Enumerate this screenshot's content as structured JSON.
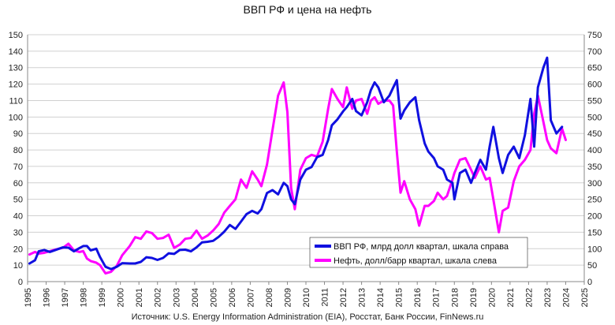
{
  "chart_data": {
    "type": "line",
    "title": "ВВП РФ и цена на нефть",
    "source": "Источник: U.S. Energy Information Administration (EIA), Росстат, Банк России, FinNews.ru",
    "x_ticks": [
      1995,
      1996,
      1997,
      1998,
      1999,
      2000,
      2001,
      2002,
      2003,
      2004,
      2005,
      2006,
      2007,
      2008,
      2009,
      2010,
      2011,
      2012,
      2013,
      2014,
      2015,
      2016,
      2017,
      2018,
      2019,
      2020,
      2021,
      2022,
      2023,
      2024,
      2025
    ],
    "xlim": [
      1995,
      2025
    ],
    "y_left": {
      "min": 0,
      "max": 150,
      "step": 10
    },
    "y_right": {
      "min": 0,
      "max": 750,
      "step": 50
    },
    "grid": true,
    "legend_position": "bottom-right",
    "series": [
      {
        "name": "ВВП РФ, млрд долл квартал, шкала справа",
        "color": "#1010e0",
        "axis": "right",
        "points": [
          [
            1995.1,
            55
          ],
          [
            1995.4,
            65
          ],
          [
            1995.6,
            92
          ],
          [
            1995.9,
            96
          ],
          [
            1996.2,
            90
          ],
          [
            1996.5,
            96
          ],
          [
            1996.9,
            104
          ],
          [
            1997.2,
            103
          ],
          [
            1997.5,
            92
          ],
          [
            1997.8,
            102
          ],
          [
            1998.0,
            108
          ],
          [
            1998.2,
            108
          ],
          [
            1998.4,
            95
          ],
          [
            1998.7,
            100
          ],
          [
            1998.9,
            75
          ],
          [
            1999.2,
            45
          ],
          [
            1999.5,
            38
          ],
          [
            1999.8,
            45
          ],
          [
            2000.1,
            56
          ],
          [
            2000.5,
            55
          ],
          [
            2000.8,
            55
          ],
          [
            2001.1,
            60
          ],
          [
            2001.4,
            74
          ],
          [
            2001.7,
            72
          ],
          [
            2002.0,
            66
          ],
          [
            2002.3,
            72
          ],
          [
            2002.6,
            86
          ],
          [
            2002.9,
            84
          ],
          [
            2003.2,
            96
          ],
          [
            2003.5,
            97
          ],
          [
            2003.8,
            92
          ],
          [
            2004.1,
            104
          ],
          [
            2004.4,
            119
          ],
          [
            2004.7,
            121
          ],
          [
            2005.0,
            124
          ],
          [
            2005.3,
            136
          ],
          [
            2005.6,
            152
          ],
          [
            2005.9,
            172
          ],
          [
            2006.2,
            160
          ],
          [
            2006.5,
            182
          ],
          [
            2006.8,
            205
          ],
          [
            2007.1,
            215
          ],
          [
            2007.4,
            207
          ],
          [
            2007.6,
            220
          ],
          [
            2007.9,
            269
          ],
          [
            2008.2,
            278
          ],
          [
            2008.5,
            265
          ],
          [
            2008.8,
            300
          ],
          [
            2009.0,
            290
          ],
          [
            2009.2,
            250
          ],
          [
            2009.4,
            235
          ],
          [
            2009.7,
            310
          ],
          [
            2010.0,
            340
          ],
          [
            2010.3,
            348
          ],
          [
            2010.6,
            378
          ],
          [
            2010.9,
            385
          ],
          [
            2011.2,
            430
          ],
          [
            2011.4,
            475
          ],
          [
            2011.7,
            493
          ],
          [
            2012.0,
            517
          ],
          [
            2012.2,
            530
          ],
          [
            2012.5,
            555
          ],
          [
            2012.7,
            518
          ],
          [
            2013.0,
            505
          ],
          [
            2013.3,
            545
          ],
          [
            2013.5,
            582
          ],
          [
            2013.7,
            605
          ],
          [
            2013.9,
            590
          ],
          [
            2014.2,
            545
          ],
          [
            2014.5,
            565
          ],
          [
            2014.7,
            589
          ],
          [
            2014.9,
            612
          ],
          [
            2015.1,
            495
          ],
          [
            2015.3,
            520
          ],
          [
            2015.6,
            545
          ],
          [
            2015.9,
            560
          ],
          [
            2016.1,
            490
          ],
          [
            2016.4,
            420
          ],
          [
            2016.6,
            395
          ],
          [
            2016.9,
            375
          ],
          [
            2017.1,
            350
          ],
          [
            2017.4,
            340
          ],
          [
            2017.6,
            310
          ],
          [
            2017.9,
            300
          ],
          [
            2018.0,
            250
          ],
          [
            2018.3,
            330
          ],
          [
            2018.6,
            340
          ],
          [
            2018.9,
            300
          ],
          [
            2019.1,
            330
          ],
          [
            2019.4,
            370
          ],
          [
            2019.7,
            340
          ],
          [
            2019.9,
            410
          ],
          [
            2020.1,
            470
          ],
          [
            2020.4,
            375
          ],
          [
            2020.6,
            330
          ],
          [
            2020.9,
            385
          ],
          [
            2021.2,
            410
          ],
          [
            2021.5,
            375
          ],
          [
            2021.8,
            445
          ],
          [
            2022.1,
            555
          ],
          [
            2022.3,
            410
          ],
          [
            2022.5,
            590
          ],
          [
            2022.8,
            650
          ],
          [
            2023.0,
            680
          ],
          [
            2023.2,
            490
          ],
          [
            2023.5,
            450
          ],
          [
            2023.8,
            470
          ]
        ]
      },
      {
        "name": "Нефть, долл/барр квартал, шкала слева",
        "color": "#ff00ff",
        "axis": "left",
        "points": [
          [
            1995.1,
            16.5
          ],
          [
            1995.4,
            18
          ],
          [
            1995.6,
            17
          ],
          [
            1995.9,
            17.5
          ],
          [
            1996.2,
            18.5
          ],
          [
            1996.5,
            19.5
          ],
          [
            1996.9,
            20.5
          ],
          [
            1997.2,
            23
          ],
          [
            1997.5,
            19
          ],
          [
            1997.8,
            18
          ],
          [
            1998.0,
            18.5
          ],
          [
            1998.2,
            14
          ],
          [
            1998.4,
            12.5
          ],
          [
            1998.7,
            11.5
          ],
          [
            1998.9,
            10
          ],
          [
            1999.2,
            5
          ],
          [
            1999.5,
            6
          ],
          [
            1999.8,
            9.5
          ],
          [
            2000.1,
            16
          ],
          [
            2000.5,
            21.5
          ],
          [
            2000.8,
            27
          ],
          [
            2001.1,
            26
          ],
          [
            2001.4,
            30.5
          ],
          [
            2001.7,
            29.5
          ],
          [
            2002.0,
            26
          ],
          [
            2002.3,
            26.5
          ],
          [
            2002.6,
            28.5
          ],
          [
            2002.9,
            20.5
          ],
          [
            2003.2,
            22.5
          ],
          [
            2003.5,
            26
          ],
          [
            2003.8,
            26.5
          ],
          [
            2004.1,
            31
          ],
          [
            2004.4,
            26
          ],
          [
            2004.7,
            28
          ],
          [
            2005.0,
            31
          ],
          [
            2005.3,
            35
          ],
          [
            2005.6,
            42
          ],
          [
            2005.9,
            46
          ],
          [
            2006.2,
            50
          ],
          [
            2006.5,
            62
          ],
          [
            2006.8,
            57
          ],
          [
            2007.1,
            67
          ],
          [
            2007.4,
            62
          ],
          [
            2007.6,
            58
          ],
          [
            2007.9,
            71
          ],
          [
            2008.2,
            92
          ],
          [
            2008.5,
            113
          ],
          [
            2008.8,
            121
          ],
          [
            2009.0,
            103
          ],
          [
            2009.2,
            57
          ],
          [
            2009.4,
            44
          ],
          [
            2009.7,
            68
          ],
          [
            2010.0,
            75
          ],
          [
            2010.3,
            77
          ],
          [
            2010.6,
            76
          ],
          [
            2010.9,
            85
          ],
          [
            2011.2,
            105
          ],
          [
            2011.4,
            117
          ],
          [
            2011.7,
            111
          ],
          [
            2012.0,
            106
          ],
          [
            2012.2,
            118
          ],
          [
            2012.5,
            105
          ],
          [
            2012.7,
            110
          ],
          [
            2013.0,
            111
          ],
          [
            2013.3,
            102
          ],
          [
            2013.5,
            110
          ],
          [
            2013.7,
            112
          ],
          [
            2013.9,
            108
          ],
          [
            2014.2,
            110
          ],
          [
            2014.5,
            110
          ],
          [
            2014.7,
            107
          ],
          [
            2014.9,
            79
          ],
          [
            2015.1,
            54
          ],
          [
            2015.3,
            61
          ],
          [
            2015.6,
            50
          ],
          [
            2015.9,
            44
          ],
          [
            2016.1,
            34
          ],
          [
            2016.4,
            46
          ],
          [
            2016.6,
            46
          ],
          [
            2016.9,
            49
          ],
          [
            2017.1,
            54
          ],
          [
            2017.4,
            50
          ],
          [
            2017.6,
            52
          ],
          [
            2017.9,
            62
          ],
          [
            2018.0,
            66
          ],
          [
            2018.3,
            74
          ],
          [
            2018.6,
            75
          ],
          [
            2018.9,
            68
          ],
          [
            2019.1,
            63
          ],
          [
            2019.4,
            70
          ],
          [
            2019.7,
            62
          ],
          [
            2019.9,
            63
          ],
          [
            2020.1,
            50
          ],
          [
            2020.4,
            30
          ],
          [
            2020.6,
            43
          ],
          [
            2020.9,
            45
          ],
          [
            2021.2,
            61
          ],
          [
            2021.5,
            70
          ],
          [
            2021.8,
            74
          ],
          [
            2022.1,
            80
          ],
          [
            2022.3,
            102
          ],
          [
            2022.5,
            113
          ],
          [
            2022.8,
            97
          ],
          [
            2023.0,
            86
          ],
          [
            2023.2,
            81
          ],
          [
            2023.5,
            78
          ],
          [
            2023.8,
            93
          ],
          [
            2024.0,
            86
          ]
        ]
      }
    ]
  }
}
